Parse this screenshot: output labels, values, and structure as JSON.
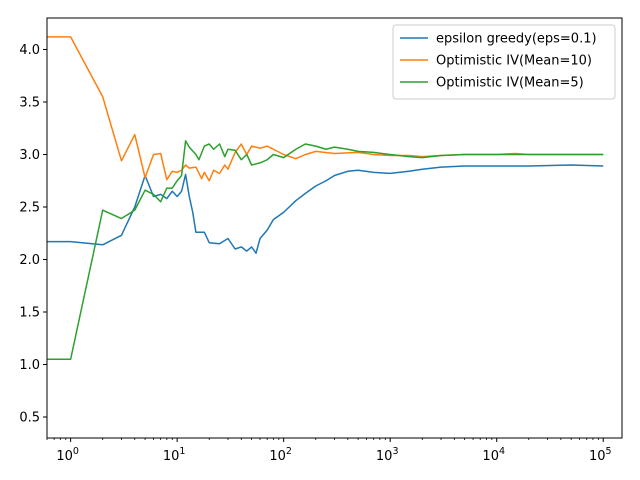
{
  "chart_data": {
    "type": "line",
    "title": "",
    "xlabel": "",
    "ylabel": "",
    "xscale": "log",
    "xlim": [
      0.6,
      150000
    ],
    "ylim": [
      0.3,
      4.3
    ],
    "x_ticks": [
      {
        "value": 1,
        "base": "10",
        "exp": "0"
      },
      {
        "value": 10,
        "base": "10",
        "exp": "1"
      },
      {
        "value": 100,
        "base": "10",
        "exp": "2"
      },
      {
        "value": 1000,
        "base": "10",
        "exp": "3"
      },
      {
        "value": 10000,
        "base": "10",
        "exp": "4"
      },
      {
        "value": 100000,
        "base": "10",
        "exp": "5"
      }
    ],
    "y_ticks": [
      {
        "value": 0.5,
        "label": "0.5"
      },
      {
        "value": 1.0,
        "label": "1.0"
      },
      {
        "value": 1.5,
        "label": "1.5"
      },
      {
        "value": 2.0,
        "label": "2.0"
      },
      {
        "value": 2.5,
        "label": "2.5"
      },
      {
        "value": 3.0,
        "label": "3.0"
      },
      {
        "value": 3.5,
        "label": "3.5"
      },
      {
        "value": 4.0,
        "label": "4.0"
      }
    ],
    "grid": false,
    "legend_position": "top-right",
    "series": [
      {
        "name": "epsilon greedy(eps=0.1)",
        "color": "#1f77b4",
        "points": [
          [
            0.5,
            2.17
          ],
          [
            1,
            2.17
          ],
          [
            2,
            2.14
          ],
          [
            3,
            2.23
          ],
          [
            4,
            2.5
          ],
          [
            5,
            2.8
          ],
          [
            6,
            2.6
          ],
          [
            7,
            2.62
          ],
          [
            8,
            2.58
          ],
          [
            9,
            2.65
          ],
          [
            10,
            2.6
          ],
          [
            11,
            2.65
          ],
          [
            12,
            2.81
          ],
          [
            13,
            2.6
          ],
          [
            14,
            2.45
          ],
          [
            15,
            2.26
          ],
          [
            18,
            2.26
          ],
          [
            20,
            2.16
          ],
          [
            25,
            2.15
          ],
          [
            30,
            2.2
          ],
          [
            35,
            2.1
          ],
          [
            40,
            2.12
          ],
          [
            45,
            2.08
          ],
          [
            50,
            2.12
          ],
          [
            55,
            2.06
          ],
          [
            60,
            2.2
          ],
          [
            70,
            2.28
          ],
          [
            80,
            2.38
          ],
          [
            100,
            2.45
          ],
          [
            130,
            2.56
          ],
          [
            160,
            2.63
          ],
          [
            200,
            2.7
          ],
          [
            250,
            2.75
          ],
          [
            300,
            2.8
          ],
          [
            400,
            2.84
          ],
          [
            500,
            2.85
          ],
          [
            700,
            2.83
          ],
          [
            1000,
            2.82
          ],
          [
            1500,
            2.84
          ],
          [
            2000,
            2.86
          ],
          [
            3000,
            2.88
          ],
          [
            5000,
            2.89
          ],
          [
            10000,
            2.89
          ],
          [
            20000,
            2.89
          ],
          [
            50000,
            2.9
          ],
          [
            100000,
            2.89
          ]
        ]
      },
      {
        "name": "Optimistic IV(Mean=10)",
        "color": "#ff7f0e",
        "points": [
          [
            0.5,
            4.12
          ],
          [
            1,
            4.12
          ],
          [
            2,
            3.55
          ],
          [
            3,
            2.94
          ],
          [
            4,
            3.19
          ],
          [
            5,
            2.78
          ],
          [
            6,
            3.0
          ],
          [
            7,
            3.01
          ],
          [
            8,
            2.76
          ],
          [
            9,
            2.84
          ],
          [
            10,
            2.83
          ],
          [
            11,
            2.85
          ],
          [
            12,
            2.9
          ],
          [
            13,
            2.87
          ],
          [
            15,
            2.88
          ],
          [
            17,
            2.77
          ],
          [
            18,
            2.83
          ],
          [
            20,
            2.75
          ],
          [
            22,
            2.85
          ],
          [
            25,
            2.82
          ],
          [
            28,
            2.9
          ],
          [
            30,
            2.86
          ],
          [
            35,
            3.02
          ],
          [
            40,
            3.1
          ],
          [
            45,
            3.0
          ],
          [
            50,
            3.08
          ],
          [
            60,
            3.06
          ],
          [
            70,
            3.08
          ],
          [
            80,
            3.05
          ],
          [
            100,
            3.0
          ],
          [
            130,
            2.96
          ],
          [
            160,
            3.0
          ],
          [
            200,
            3.03
          ],
          [
            300,
            3.01
          ],
          [
            500,
            3.02
          ],
          [
            700,
            3.0
          ],
          [
            1000,
            2.99
          ],
          [
            1500,
            2.99
          ],
          [
            2000,
            2.98
          ],
          [
            3000,
            2.99
          ],
          [
            5000,
            3.0
          ],
          [
            10000,
            3.0
          ],
          [
            15000,
            3.01
          ],
          [
            20000,
            3.0
          ],
          [
            50000,
            3.0
          ],
          [
            100000,
            3.0
          ]
        ]
      },
      {
        "name": "Optimistic IV(Mean=5)",
        "color": "#2ca02c",
        "points": [
          [
            0.5,
            1.05
          ],
          [
            1,
            1.05
          ],
          [
            2,
            2.47
          ],
          [
            3,
            2.39
          ],
          [
            4,
            2.47
          ],
          [
            5,
            2.66
          ],
          [
            6,
            2.62
          ],
          [
            7,
            2.55
          ],
          [
            8,
            2.68
          ],
          [
            9,
            2.68
          ],
          [
            10,
            2.75
          ],
          [
            11,
            2.8
          ],
          [
            12,
            3.13
          ],
          [
            13,
            3.07
          ],
          [
            15,
            3.0
          ],
          [
            16,
            2.95
          ],
          [
            18,
            3.08
          ],
          [
            20,
            3.1
          ],
          [
            22,
            3.05
          ],
          [
            25,
            3.1
          ],
          [
            28,
            2.98
          ],
          [
            30,
            3.05
          ],
          [
            35,
            3.04
          ],
          [
            40,
            2.95
          ],
          [
            45,
            3.0
          ],
          [
            50,
            2.9
          ],
          [
            60,
            2.92
          ],
          [
            70,
            2.95
          ],
          [
            80,
            3.0
          ],
          [
            100,
            2.97
          ],
          [
            130,
            3.05
          ],
          [
            160,
            3.1
          ],
          [
            200,
            3.08
          ],
          [
            250,
            3.05
          ],
          [
            300,
            3.07
          ],
          [
            400,
            3.05
          ],
          [
            500,
            3.03
          ],
          [
            700,
            3.02
          ],
          [
            1000,
            3.0
          ],
          [
            1500,
            2.98
          ],
          [
            2000,
            2.97
          ],
          [
            3000,
            2.99
          ],
          [
            5000,
            3.0
          ],
          [
            10000,
            3.0
          ],
          [
            20000,
            3.0
          ],
          [
            50000,
            3.0
          ],
          [
            100000,
            3.0
          ]
        ]
      }
    ]
  }
}
